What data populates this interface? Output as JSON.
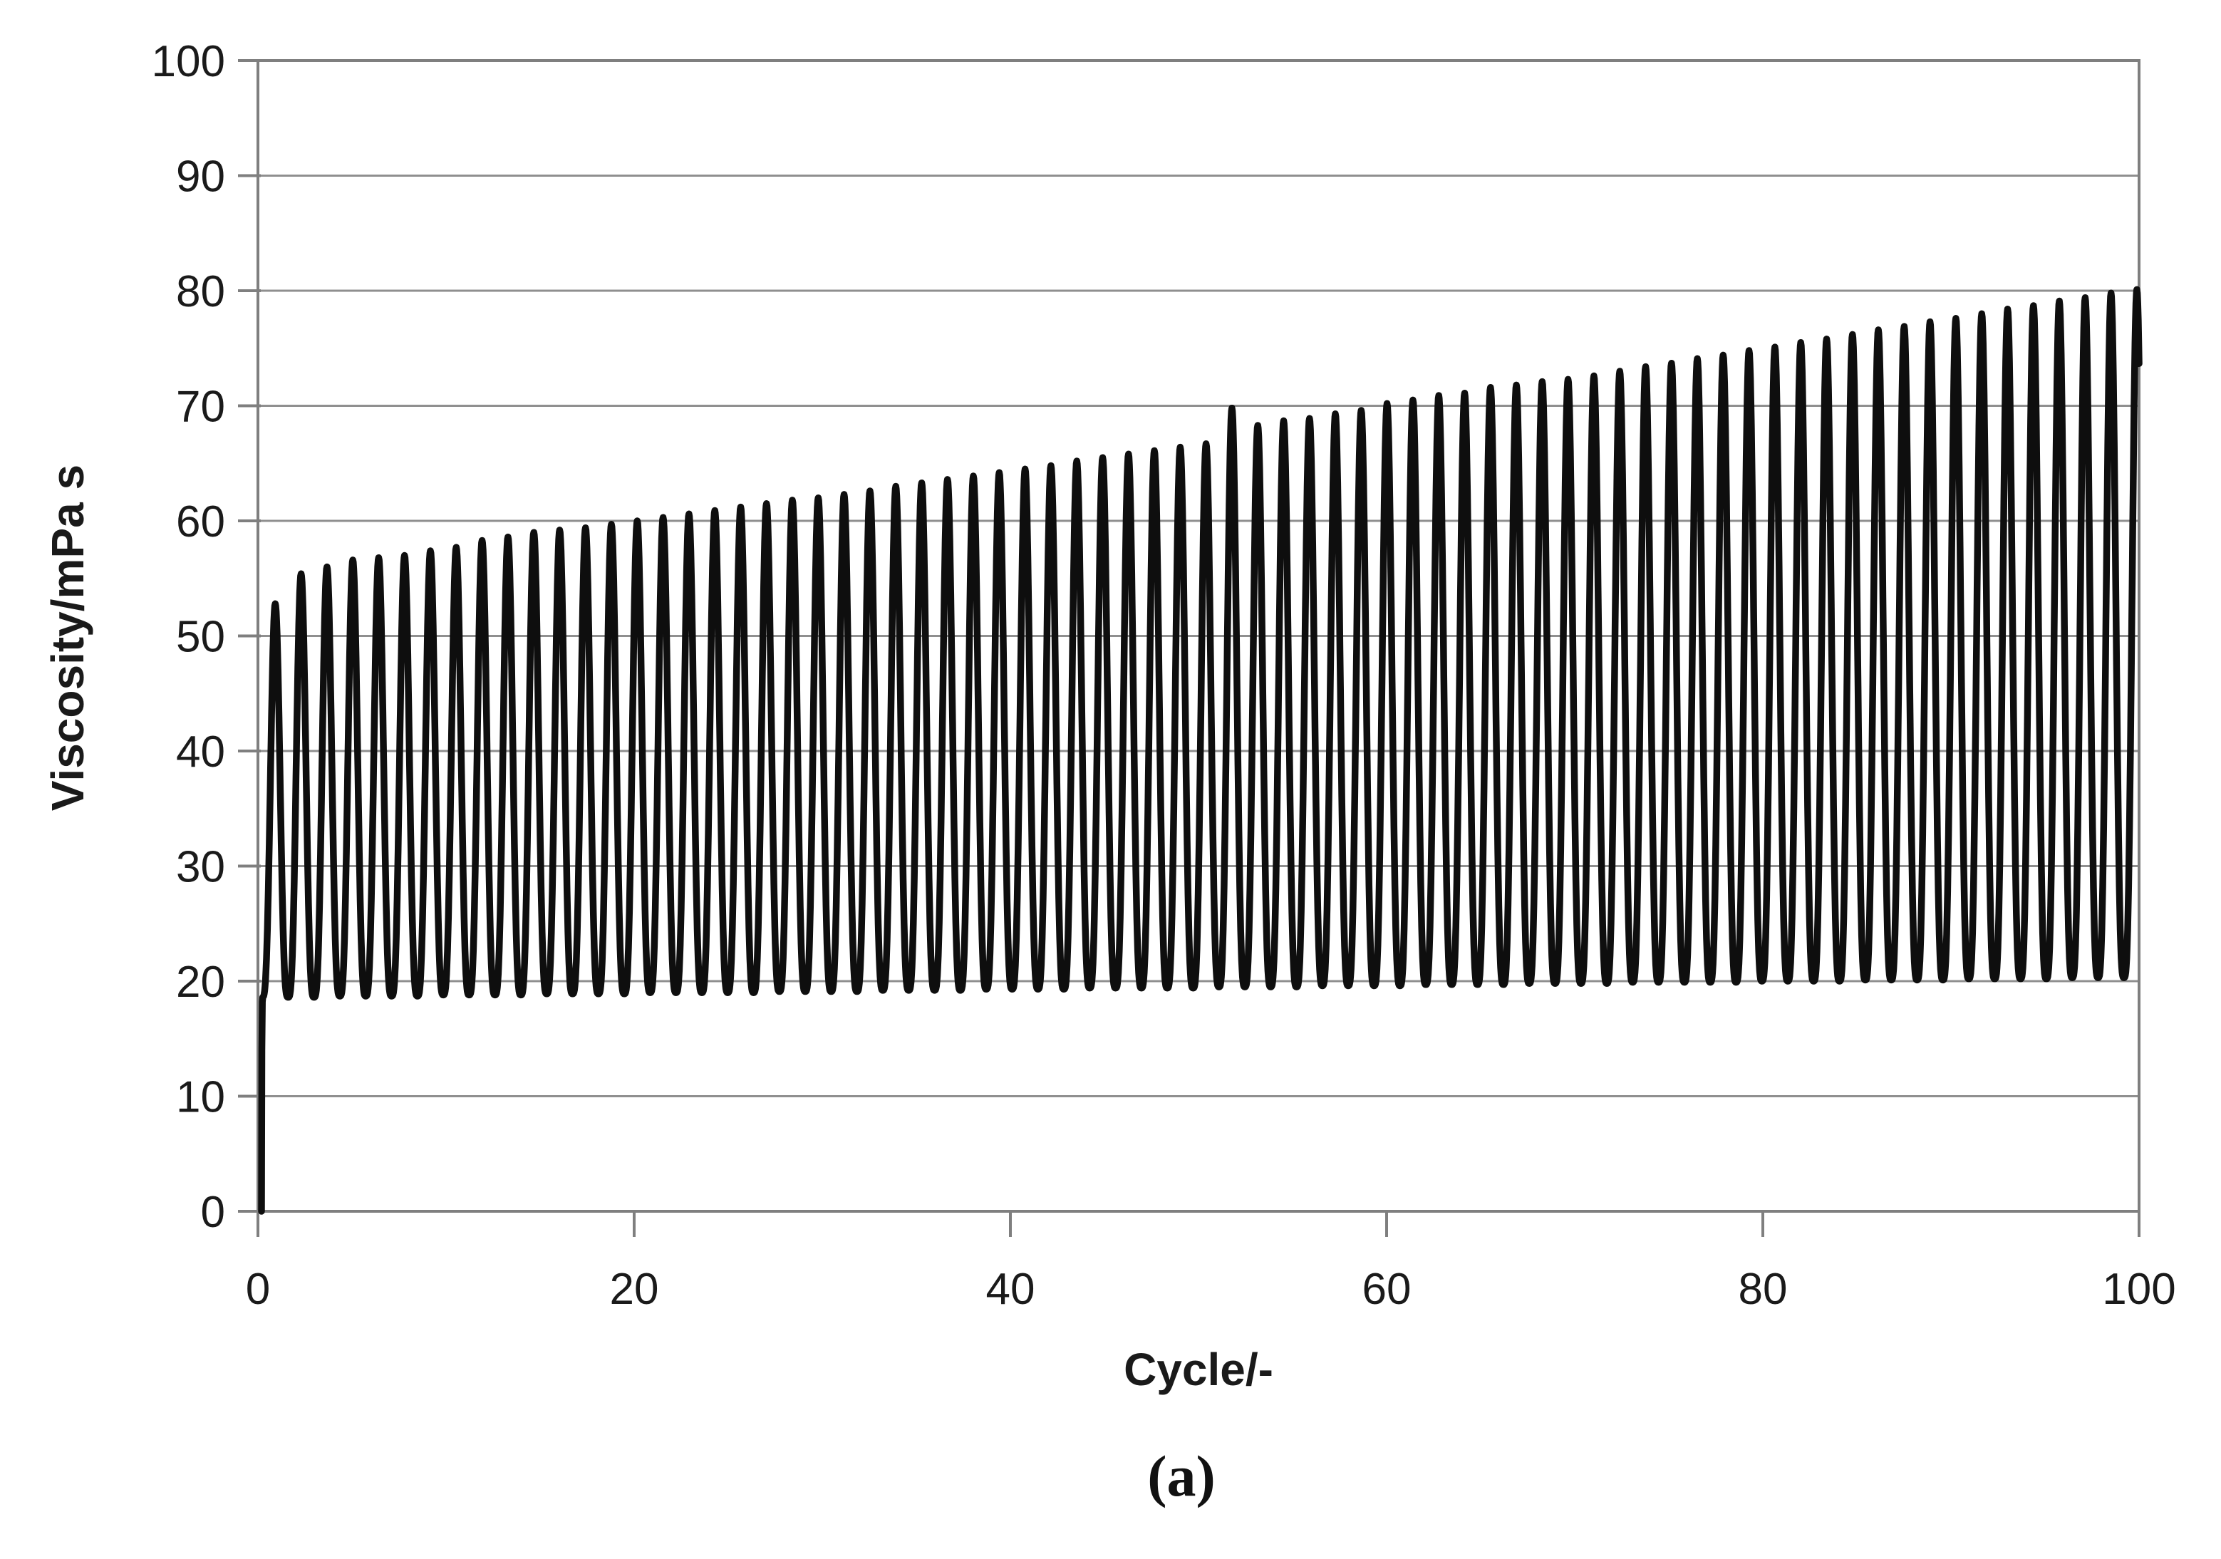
{
  "figure": {
    "caption": "(a)"
  },
  "chart_data": {
    "type": "line",
    "title": "",
    "xlabel": "Cycle/-",
    "ylabel": "Viscosity/mPa s",
    "xlim": [
      0,
      100
    ],
    "ylim": [
      0,
      100
    ],
    "xticks": [
      0,
      20,
      40,
      60,
      80,
      100
    ],
    "yticks": [
      0,
      10,
      20,
      30,
      40,
      50,
      60,
      70,
      80,
      90,
      100
    ],
    "grid": "horizontal-only",
    "legend_position": "none",
    "colors": {
      "line": "#0e0e0e",
      "gridline": "#8f8f8f",
      "axis_border": "#7f7f7f",
      "text": "#1a1a1a",
      "background": "#ffffff"
    },
    "series_name": "viscosity-oscillation",
    "oscillation": {
      "description": "Continuous oscillating viscosity trace: starts at 0, jumps to ~18.6, then ~73 evenly spaced oscillations between a slowly rising trough envelope and a rising peak envelope; one anomalous taller spike (~69.8) near cycle 51; trace ends at right border near 80.",
      "num_peaks": 73,
      "start_cycle": 0.19,
      "start_value": 0,
      "first_peak_cycle": 0.92,
      "cycle_period": 1.3745,
      "peak_sharpness": 1.6,
      "peak_values": [
        52.8,
        55.4,
        56.0,
        56.6,
        56.8,
        57.0,
        57.4,
        57.7,
        58.3,
        58.6,
        59.0,
        59.2,
        59.4,
        59.7,
        60.0,
        60.3,
        60.6,
        60.9,
        61.2,
        61.5,
        61.8,
        62.0,
        62.3,
        62.6,
        63.0,
        63.3,
        63.6,
        63.9,
        64.2,
        64.5,
        64.8,
        65.2,
        65.5,
        65.8,
        66.1,
        66.4,
        66.7,
        69.8,
        68.3,
        68.7,
        68.9,
        69.3,
        69.6,
        70.2,
        70.5,
        70.9,
        71.1,
        71.6,
        71.8,
        72.1,
        72.3,
        72.6,
        73.0,
        73.4,
        73.7,
        74.1,
        74.4,
        74.8,
        75.1,
        75.5,
        75.8,
        76.2,
        76.6,
        76.9,
        77.3,
        77.6,
        78.0,
        78.4,
        78.7,
        79.1,
        79.4,
        79.8,
        80.1
      ],
      "trough_values": [
        18.6,
        18.6,
        18.6,
        18.7,
        18.7,
        18.7,
        18.7,
        18.8,
        18.8,
        18.8,
        18.8,
        18.9,
        18.9,
        18.9,
        18.9,
        19.0,
        19.0,
        19.0,
        19.0,
        19.0,
        19.1,
        19.1,
        19.1,
        19.1,
        19.2,
        19.2,
        19.2,
        19.2,
        19.3,
        19.3,
        19.3,
        19.3,
        19.4,
        19.4,
        19.4,
        19.4,
        19.4,
        19.5,
        19.5,
        19.5,
        19.5,
        19.6,
        19.6,
        19.6,
        19.6,
        19.7,
        19.7,
        19.7,
        19.7,
        19.8,
        19.8,
        19.8,
        19.8,
        19.9,
        19.9,
        19.9,
        19.9,
        19.9,
        20.0,
        20.0,
        20.0,
        20.0,
        20.1,
        20.1,
        20.1,
        20.1,
        20.2,
        20.2,
        20.2,
        20.2,
        20.3,
        20.3,
        20.3
      ]
    }
  }
}
